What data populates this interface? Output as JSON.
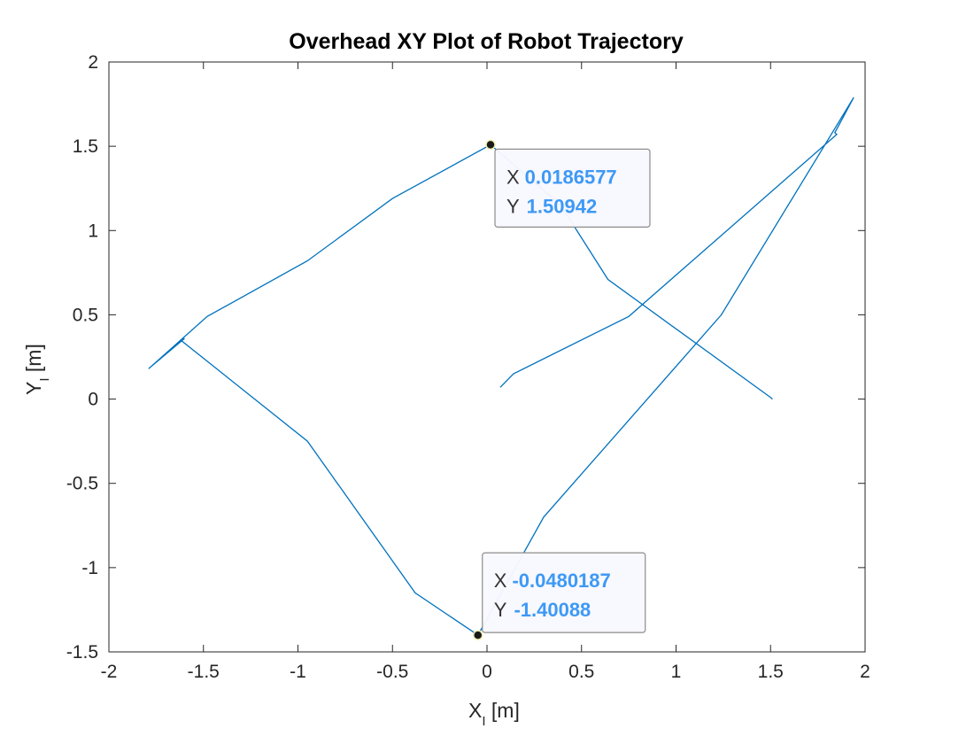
{
  "chart_data": {
    "type": "line",
    "title": "Overhead XY Plot of Robot Trajectory",
    "xlabel_main": "X",
    "xlabel_sub": "I",
    "xlabel_unit": " [m]",
    "ylabel_main": "Y",
    "ylabel_sub": "I",
    "ylabel_unit": " [m]",
    "xlim": [
      -2,
      2
    ],
    "ylim": [
      -1.5,
      2
    ],
    "xticks": [
      -2,
      -1.5,
      -1,
      -0.5,
      0,
      0.5,
      1,
      1.5,
      2
    ],
    "yticks": [
      -1.5,
      -1,
      -0.5,
      0,
      0.5,
      1,
      1.5,
      2
    ],
    "xtick_labels": [
      "-2",
      "-1.5",
      "-1",
      "-0.5",
      "0",
      "0.5",
      "1",
      "1.5",
      "2"
    ],
    "ytick_labels": [
      "-1.5",
      "-1",
      "-0.5",
      "0",
      "0.5",
      "1",
      "1.5",
      "2"
    ],
    "grid": false,
    "line_color": "#0072bd",
    "series": [
      {
        "x": [
          0.07,
          0.14,
          0.75,
          1.85,
          1.84,
          1.94,
          1.24,
          0.3,
          -0.048,
          -0.38,
          -0.95,
          -1.62,
          -1.6,
          -1.79,
          -1.48,
          -0.95,
          -0.5,
          0.0187,
          0.39,
          0.64,
          1.5,
          1.51
        ],
        "y": [
          0.07,
          0.15,
          0.49,
          1.57,
          1.58,
          1.79,
          0.5,
          -0.7,
          -1.4009,
          -1.15,
          -0.25,
          0.35,
          0.36,
          0.18,
          0.49,
          0.82,
          1.19,
          1.5094,
          1.15,
          0.71,
          0.01,
          0.0
        ]
      }
    ],
    "datatips": [
      {
        "x": 0.0187,
        "y": 1.5094,
        "x_key": "X",
        "x_text": "0.0186577",
        "y_key": "Y",
        "y_text": "1.50942"
      },
      {
        "x": -0.048,
        "y": -1.4009,
        "x_key": "X",
        "x_text": "-0.0480187",
        "y_key": "Y",
        "y_text": "-1.40088"
      }
    ]
  }
}
